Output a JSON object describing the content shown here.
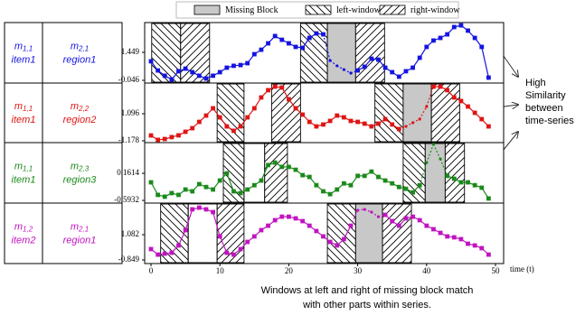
{
  "legend": [
    {
      "label": "Missing Block",
      "pattern": "missing"
    },
    {
      "label": "left-window",
      "pattern": "left"
    },
    {
      "label": "right-window",
      "pattern": "right"
    }
  ],
  "table": {
    "rows": [
      [
        {
          "symbol": "m",
          "sub": "1,1",
          "text": "item1"
        },
        {
          "symbol": "m",
          "sub": "2,1",
          "text": "region1"
        }
      ],
      [
        {
          "symbol": "m",
          "sub": "1,1",
          "text": "item1"
        },
        {
          "symbol": "m",
          "sub": "2,2",
          "text": "region2"
        }
      ],
      [
        {
          "symbol": "m",
          "sub": "1,1",
          "text": "item1"
        },
        {
          "symbol": "m",
          "sub": "2,3",
          "text": "region3"
        }
      ],
      [
        {
          "symbol": "m",
          "sub": "1,2",
          "text": "item2"
        },
        {
          "symbol": "m",
          "sub": "2,1",
          "text": "region1"
        }
      ]
    ]
  },
  "annotation": [
    "High",
    "Similarity",
    "between",
    "time-series"
  ],
  "caption": [
    "Windows at left and right of missing block match",
    "with other parts within series."
  ],
  "chart_data": [
    {
      "type": "line",
      "color": "#1414e0",
      "xlim": [
        -0.92,
        51.18
      ],
      "ylim": [
        -0.19,
        3.04
      ],
      "yticks": [
        1.449,
        -0.046
      ],
      "x": [
        0,
        1,
        2,
        3,
        4,
        5,
        6,
        7,
        8,
        9,
        10,
        11,
        12,
        13,
        14,
        15,
        16,
        17,
        18,
        19,
        20,
        21,
        22,
        23,
        24,
        25,
        26,
        27,
        28,
        29,
        30,
        31,
        32,
        33,
        34,
        35,
        36,
        37,
        38,
        39,
        40,
        41,
        42,
        43,
        44,
        45,
        46,
        47,
        48,
        49
      ],
      "values": [
        0.97,
        0.48,
        0.2,
        0.0,
        0.44,
        0.58,
        0.39,
        0.2,
        0.05,
        0.2,
        0.39,
        0.63,
        0.73,
        0.77,
        0.87,
        1.35,
        1.59,
        1.93,
        2.32,
        2.12,
        1.93,
        1.74,
        1.69,
        2.22,
        2.46,
        2.41,
        1.01,
        0.73,
        0.53,
        0.34,
        0.48,
        0.68,
        1.11,
        1.06,
        0.63,
        0.39,
        0.15,
        0.44,
        0.63,
        1.16,
        1.74,
        2.08,
        2.22,
        2.41,
        2.8,
        2.89,
        2.61,
        2.22,
        1.74,
        0.1
      ],
      "blocks": [
        {
          "pattern": "left",
          "start": 0.1,
          "end": 4.3
        },
        {
          "pattern": "right",
          "start": 4.3,
          "end": 8.5
        },
        {
          "pattern": "left",
          "start": 21.7,
          "end": 25.6
        },
        {
          "pattern": "missing",
          "start": 25.6,
          "end": 29.7
        },
        {
          "pattern": "right",
          "start": 29.7,
          "end": 33.9
        }
      ]
    },
    {
      "type": "line",
      "color": "#e01414",
      "xlim": [
        -0.92,
        51.18
      ],
      "ylim": [
        -1.33,
        3.67
      ],
      "yticks": [
        1.096,
        -1.178
      ],
      "x": [
        0,
        1,
        2,
        3,
        4,
        5,
        6,
        7,
        8,
        9,
        10,
        11,
        12,
        13,
        14,
        15,
        16,
        17,
        18,
        19,
        20,
        21,
        22,
        23,
        24,
        25,
        26,
        27,
        28,
        29,
        30,
        31,
        32,
        33,
        34,
        35,
        36,
        37,
        38,
        39,
        40,
        41,
        42,
        43,
        44,
        45,
        46,
        47,
        48,
        49
      ],
      "values": [
        -0.73,
        -1.1,
        -1.03,
        -0.87,
        -0.72,
        -0.42,
        -0.12,
        0.41,
        0.94,
        1.55,
        0.79,
        0.03,
        -0.34,
        0.03,
        0.79,
        1.55,
        2.46,
        3.07,
        3.37,
        3.29,
        2.31,
        1.55,
        1.02,
        0.41,
        0.03,
        0.19,
        0.49,
        0.94,
        0.79,
        0.49,
        0.41,
        0.26,
        0.03,
        0.26,
        0.64,
        0.19,
        -0.19,
        0.03,
        0.34,
        0.64,
        1.7,
        3.37,
        3.37,
        3.07,
        2.46,
        2.16,
        1.7,
        1.17,
        0.64,
        0.03
      ],
      "blocks": [
        {
          "pattern": "left",
          "start": 9.6,
          "end": 13.5
        },
        {
          "pattern": "right",
          "start": 17.5,
          "end": 21.7
        },
        {
          "pattern": "left",
          "start": 32.5,
          "end": 36.6
        },
        {
          "pattern": "missing",
          "start": 36.6,
          "end": 40.7
        },
        {
          "pattern": "right",
          "start": 40.7,
          "end": 44.8
        }
      ]
    },
    {
      "type": "line",
      "color": "#1a8a1a",
      "xlim": [
        -0.92,
        51.18
      ],
      "ylim": [
        -0.668,
        1.017
      ],
      "yticks": [
        0.1614,
        -0.5932
      ],
      "x": [
        0,
        1,
        2,
        3,
        4,
        5,
        6,
        7,
        8,
        9,
        10,
        11,
        12,
        13,
        14,
        15,
        16,
        17,
        18,
        19,
        20,
        21,
        22,
        23,
        24,
        25,
        26,
        27,
        28,
        29,
        30,
        31,
        32,
        33,
        34,
        35,
        36,
        37,
        38,
        39,
        40,
        41,
        42,
        43,
        44,
        45,
        46,
        47,
        48,
        49
      ],
      "values": [
        -0.09,
        -0.44,
        -0.49,
        -0.39,
        -0.44,
        -0.29,
        -0.34,
        -0.14,
        -0.22,
        -0.29,
        -0.04,
        0.16,
        -0.34,
        -0.39,
        -0.29,
        -0.17,
        -0.04,
        0.39,
        0.46,
        0.34,
        0.34,
        0.26,
        0.11,
        0.06,
        -0.17,
        -0.34,
        -0.42,
        -0.29,
        -0.12,
        -0.17,
        0.09,
        0.09,
        0.21,
        0.06,
        -0.04,
        -0.12,
        -0.22,
        -0.27,
        -0.37,
        -0.17,
        0.46,
        0.97,
        0.56,
        0.09,
        0.01,
        -0.09,
        -0.09,
        -0.17,
        -0.24,
        -0.54
      ],
      "blocks": [
        {
          "pattern": "left",
          "start": 10.5,
          "end": 13.5
        },
        {
          "pattern": "none",
          "start": 13.5,
          "end": 16.5
        },
        {
          "pattern": "right",
          "start": 16.5,
          "end": 19.8
        },
        {
          "pattern": "left",
          "start": 36.6,
          "end": 39.8
        },
        {
          "pattern": "missing",
          "start": 39.8,
          "end": 42.7
        },
        {
          "pattern": "right",
          "start": 42.7,
          "end": 45.5
        }
      ]
    },
    {
      "type": "line",
      "color": "#c014c0",
      "xlim": [
        -0.92,
        51.18
      ],
      "ylim": [
        -1.125,
        3.5
      ],
      "yticks": [
        1.082,
        -0.849
      ],
      "xticks": [
        0,
        10,
        20,
        30,
        40,
        50
      ],
      "x_label": "time (t)",
      "x": [
        0,
        1,
        2,
        3,
        4,
        5,
        6,
        7,
        8,
        9,
        10,
        11,
        12,
        13,
        14,
        15,
        16,
        17,
        18,
        19,
        20,
        21,
        22,
        23,
        24,
        25,
        26,
        27,
        28,
        29,
        30,
        31,
        32,
        33,
        34,
        35,
        36,
        37,
        38,
        39,
        40,
        41,
        42,
        43,
        44,
        45,
        46,
        47,
        48,
        49
      ],
      "values": [
        -0.02,
        -0.44,
        -0.37,
        -0.3,
        0.26,
        1.43,
        3.02,
        3.15,
        3.02,
        2.81,
        0.95,
        -0.3,
        -0.44,
        -0.02,
        0.53,
        0.95,
        1.43,
        1.77,
        2.19,
        2.46,
        2.46,
        2.33,
        2.12,
        1.77,
        1.36,
        0.95,
        0.53,
        0.26,
        0.74,
        1.77,
        2.95,
        3.02,
        2.81,
        2.46,
        2.6,
        2.12,
        1.77,
        2.33,
        2.46,
        2.19,
        1.77,
        1.5,
        1.22,
        0.95,
        0.88,
        0.74,
        0.39,
        0.26,
        0.05,
        -0.44
      ],
      "blocks": [
        {
          "pattern": "left",
          "start": 1.4,
          "end": 5.4
        },
        {
          "pattern": "none",
          "start": 5.4,
          "end": 9.6
        },
        {
          "pattern": "right",
          "start": 9.6,
          "end": 13.5
        },
        {
          "pattern": "left",
          "start": 25.6,
          "end": 29.7
        },
        {
          "pattern": "missing",
          "start": 29.7,
          "end": 33.6
        },
        {
          "pattern": "right",
          "start": 33.6,
          "end": 37.8
        }
      ]
    }
  ]
}
